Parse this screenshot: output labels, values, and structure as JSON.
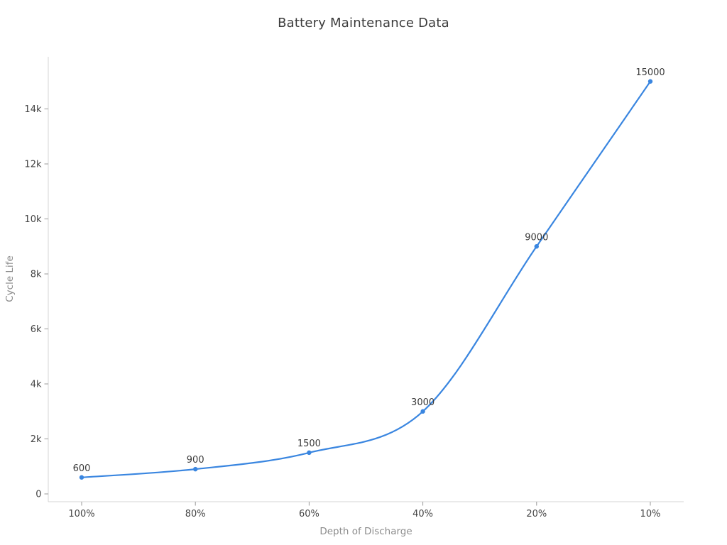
{
  "chart_data": {
    "type": "line",
    "title": "Battery Maintenance Data",
    "xlabel": "Depth of Discharge",
    "ylabel": "Cycle Life",
    "categories": [
      "100%",
      "80%",
      "60%",
      "40%",
      "20%",
      "10%"
    ],
    "series": [
      {
        "name": "Cycle Life",
        "values": [
          600,
          900,
          1500,
          3000,
          9000,
          15000
        ]
      }
    ],
    "point_labels": [
      "600",
      "900",
      "1500",
      "3000",
      "9000",
      "15000"
    ],
    "y_ticks": {
      "values": [
        0,
        2000,
        4000,
        6000,
        8000,
        10000,
        12000,
        14000
      ],
      "labels": [
        "0",
        "2k",
        "4k",
        "6k",
        "8k",
        "10k",
        "12k",
        "14k"
      ]
    },
    "ylim": [
      0,
      15600
    ],
    "line_shape": "spline",
    "grid": "off",
    "legend": "none",
    "colors": {
      "line": "#3a86e0",
      "marker": "#3a86e0",
      "title": "#3b3b3b",
      "tick_text": "#444444",
      "point_label": "#3b3b3b",
      "axis_line": "#d4d4d4",
      "tick_mark": "#999999",
      "axis_title": "#8c8c8c",
      "background": "#ffffff"
    }
  }
}
